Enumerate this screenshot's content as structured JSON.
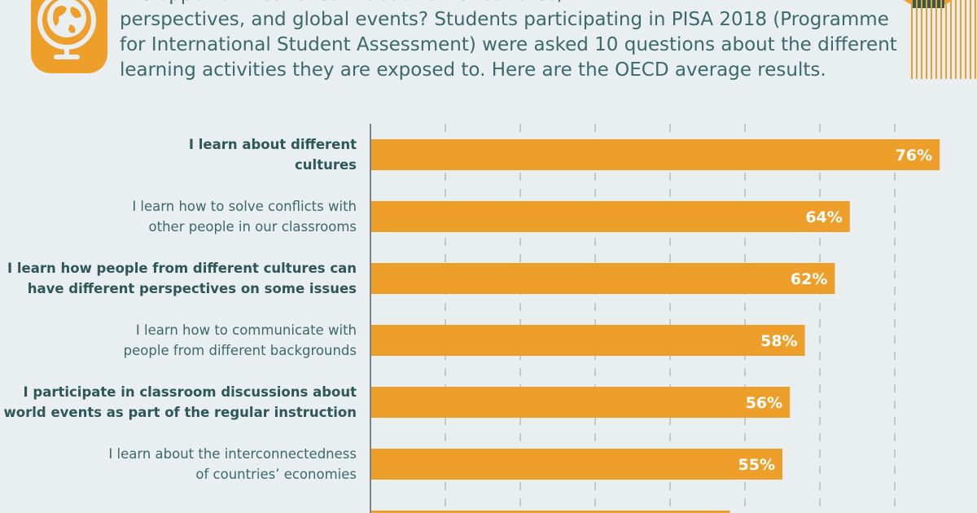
{
  "intro": {
    "lines": [
      "Are opportunities to learn about other cultures,",
      "perspectives, and global events? Students participating in PISA 2018 (Programme",
      "for International Student Assessment) were asked 10 questions about the different",
      "learning activities they are exposed to. Here are the OECD average results."
    ]
  },
  "icon": "globe-icon",
  "colors": {
    "background": "#e9eef0",
    "bar": "#ee9f2a",
    "text": "#3a6a6a",
    "label_bold": "#2e5757",
    "accent_dark": "#2f5b57"
  },
  "chart_data": {
    "type": "bar",
    "orientation": "horizontal",
    "xlim": [
      0,
      80
    ],
    "grid": true,
    "categories": [
      {
        "label": [
          "I learn about different",
          "cultures"
        ],
        "bold": true
      },
      {
        "label": [
          "I learn how to solve conflicts with",
          "other people in our classrooms"
        ],
        "bold": false
      },
      {
        "label": [
          "I learn how people from different cultures can",
          "have different perspectives on some issues"
        ],
        "bold": true
      },
      {
        "label": [
          "I learn how to communicate with",
          "people from different backgrounds"
        ],
        "bold": false
      },
      {
        "label": [
          "I participate in classroom discussions about",
          "world events as part of the regular instruction"
        ],
        "bold": true
      },
      {
        "label": [
          "I learn about the interconnectedness",
          "of countries’ economies"
        ],
        "bold": false
      },
      {
        "label": [],
        "bold": true
      }
    ],
    "values": [
      76,
      64,
      62,
      58,
      56,
      55,
      48
    ],
    "value_labels": [
      "76%",
      "64%",
      "62%",
      "58%",
      "56%",
      "55%",
      ""
    ]
  }
}
